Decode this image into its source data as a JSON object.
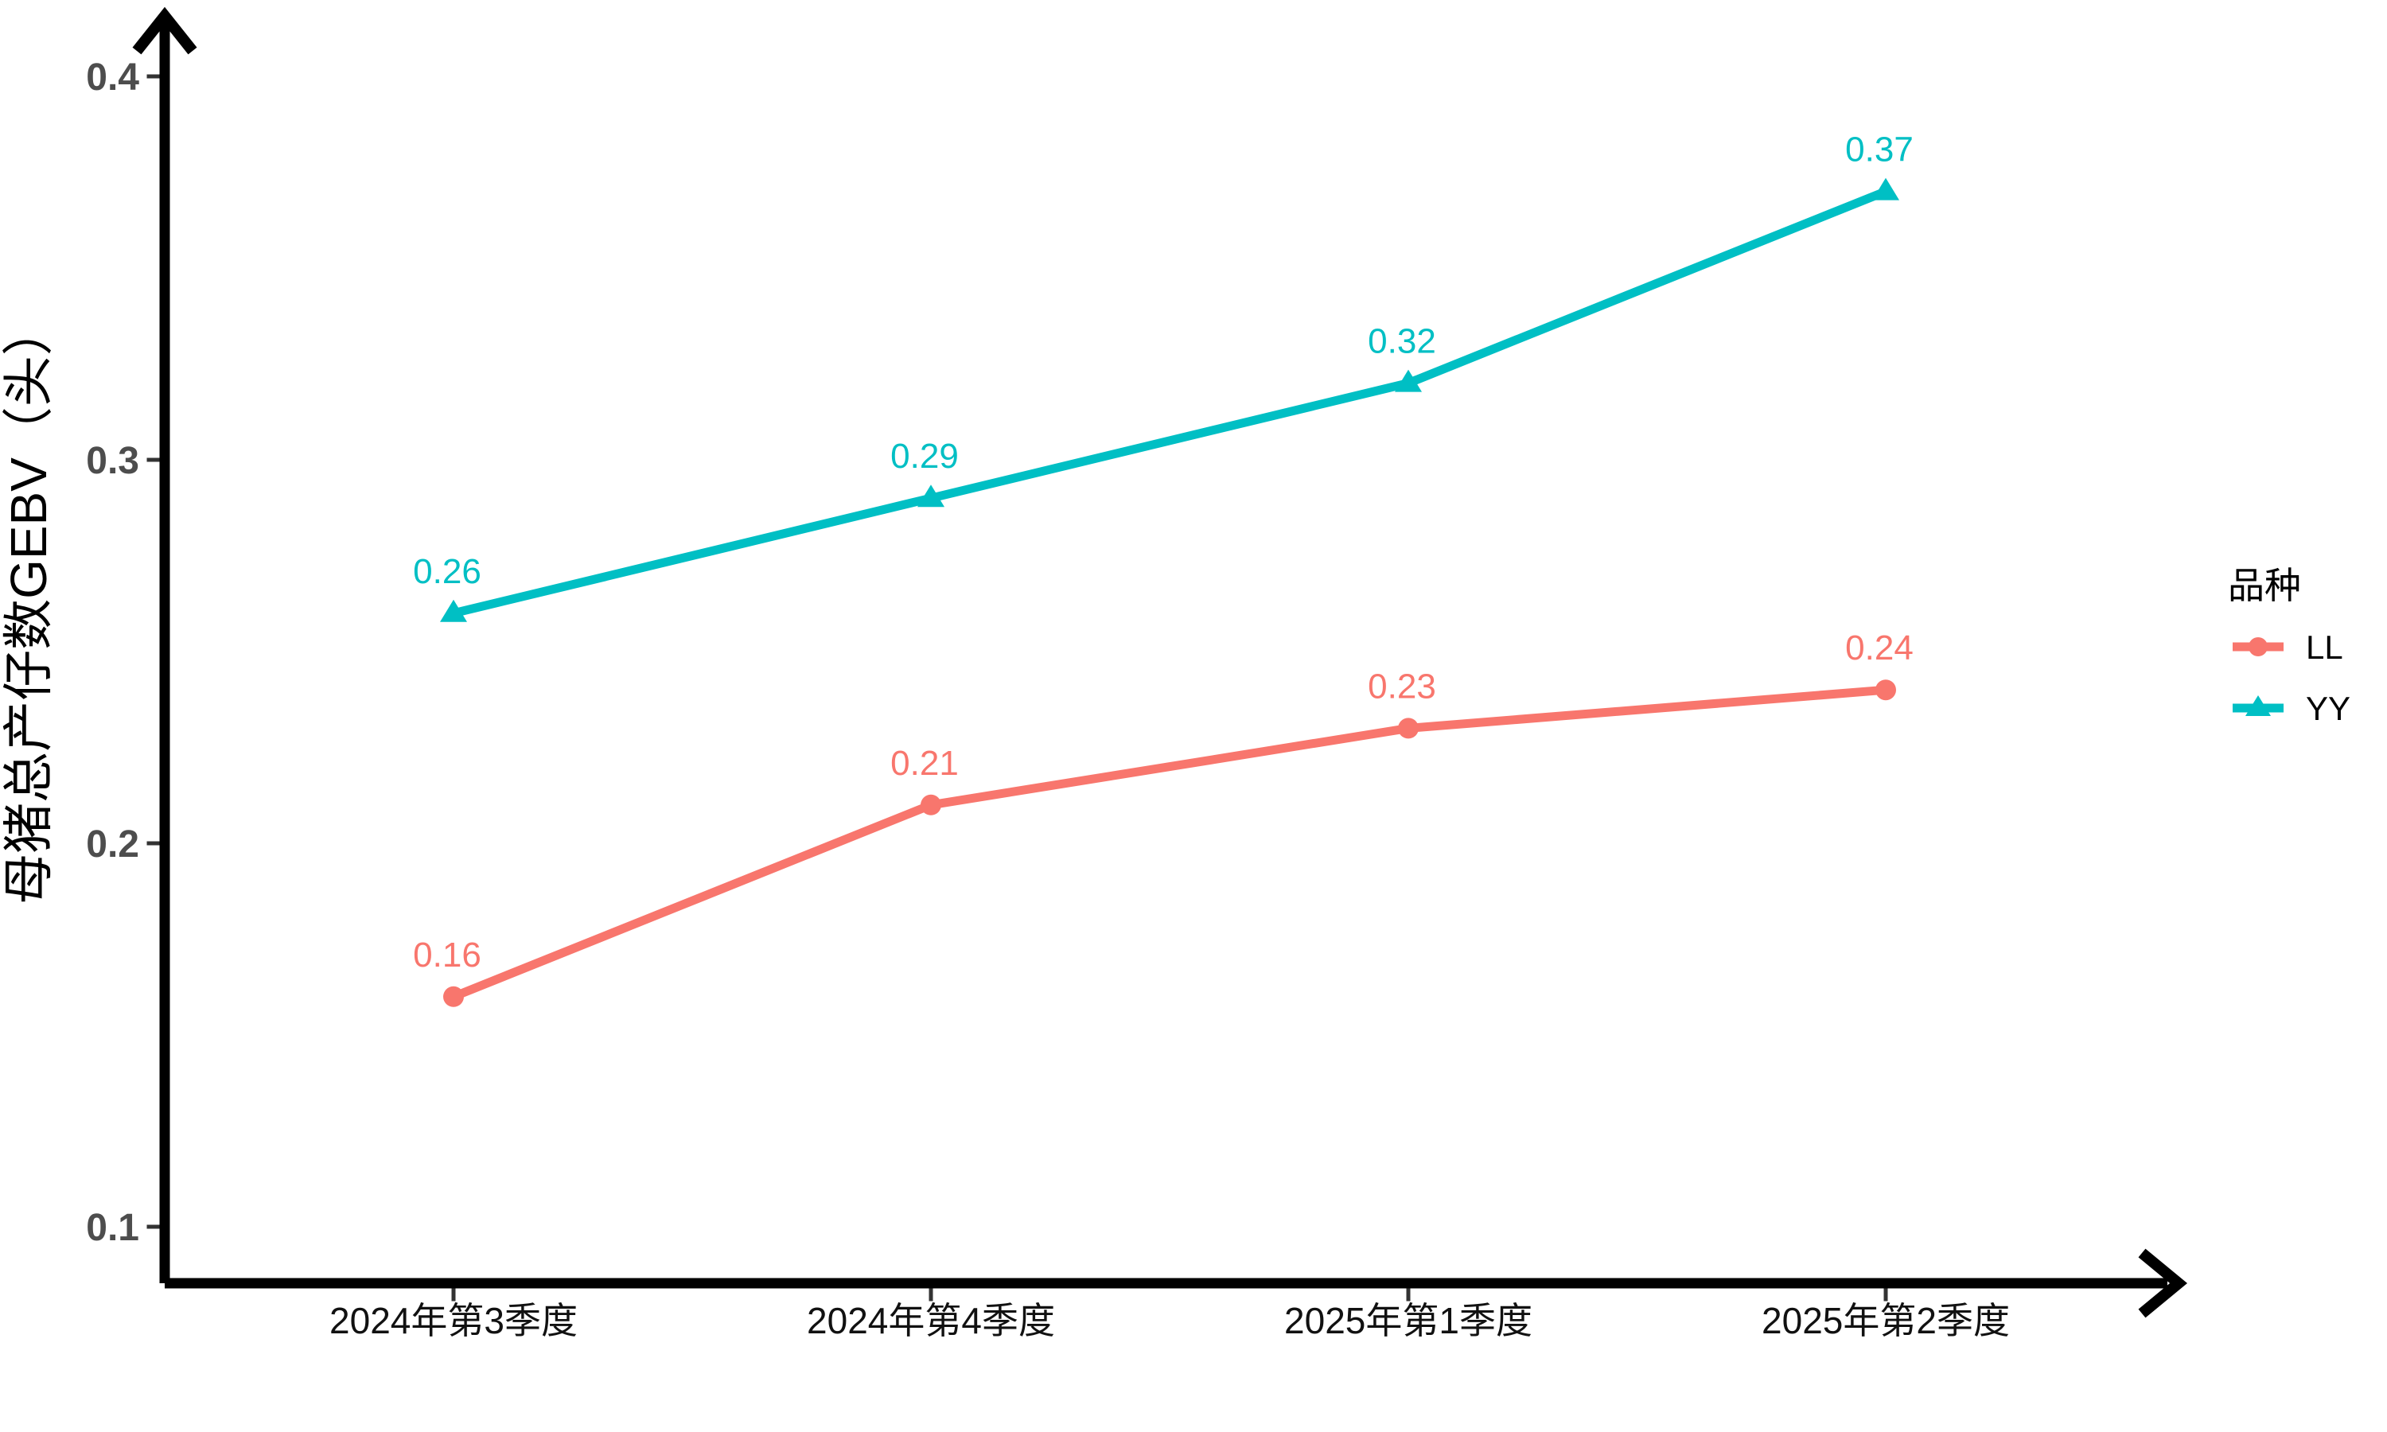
{
  "chart_data": {
    "type": "line",
    "categories": [
      "2024年第3季度",
      "2024年第4季度",
      "2025年第1季度",
      "2025年第2季度"
    ],
    "series": [
      {
        "name": "LL",
        "color": "#F8766D",
        "marker": "circle",
        "values": [
          0.16,
          0.21,
          0.23,
          0.24
        ]
      },
      {
        "name": "YY",
        "color": "#00BFC4",
        "marker": "triangle",
        "values": [
          0.26,
          0.29,
          0.32,
          0.37
        ]
      }
    ],
    "value_labels": [
      "0.16",
      "0.21",
      "0.23",
      "0.24",
      "0.26",
      "0.29",
      "0.32",
      "0.37"
    ],
    "title": "",
    "xlabel": "",
    "ylabel": "母猪总产仔数GEBV（头）",
    "yticks": [
      0.1,
      0.2,
      0.3,
      0.4
    ],
    "ytick_labels": [
      "0.1",
      "0.2",
      "0.3",
      "0.4"
    ],
    "ylim": [
      0.08,
      0.43
    ],
    "grid": false,
    "legend": {
      "title": "品种",
      "position": "right",
      "items": [
        {
          "label": "LL",
          "color": "#F8766D",
          "marker": "circle"
        },
        {
          "label": "YY",
          "color": "#00BFC4",
          "marker": "triangle"
        }
      ]
    },
    "colors": {
      "axis_line": "#000000",
      "tick_mark": "#333333",
      "ytick_label": "#4d4d4d",
      "xtick_label": "#111111",
      "series_LL": "#F8766D",
      "series_YY": "#00BFC4",
      "background": "#ffffff"
    }
  }
}
